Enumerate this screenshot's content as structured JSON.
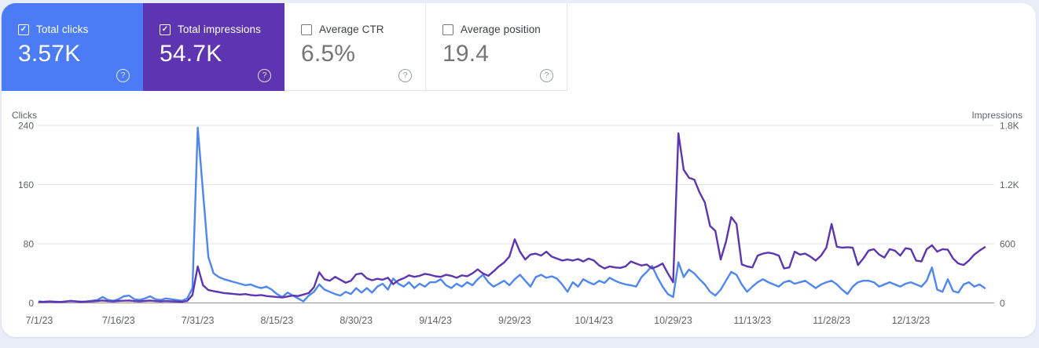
{
  "colors": {
    "page_bg": "#e9edf8",
    "card_bg": "#ffffff",
    "clicks_blue": "#4b7bf5",
    "clicks_line": "#4f86f0",
    "impressions_purple": "#5e35b1",
    "grid_line": "#e3e3e3",
    "zero_line": "#8f9499",
    "tick_text": "#5f6368",
    "plain_label": "#3c4043",
    "plain_value": "#757575"
  },
  "icons": {
    "check": "✓",
    "help": "?"
  },
  "metric_cards": [
    {
      "id": "total-clicks",
      "label": "Total clicks",
      "value": "3.57K",
      "checked": true,
      "bg": "#4b7bf5",
      "label_color": "#ffffff",
      "value_color": "#ffffff"
    },
    {
      "id": "total-impressions",
      "label": "Total impressions",
      "value": "54.7K",
      "checked": true,
      "bg": "#5e35b1",
      "label_color": "#ffffff",
      "value_color": "#ffffff"
    },
    {
      "id": "average-ctr",
      "label": "Average CTR",
      "value": "6.5%",
      "checked": false,
      "bg": "#ffffff",
      "label_color": "#3c4043",
      "value_color": "#757575"
    },
    {
      "id": "average-position",
      "label": "Average position",
      "value": "19.4",
      "checked": false,
      "bg": "#ffffff",
      "label_color": "#3c4043",
      "value_color": "#757575"
    }
  ],
  "chart_data": {
    "type": "line",
    "grid": true,
    "legend_position": "none",
    "x_tick_labels": [
      "7/1/23",
      "7/16/23",
      "7/31/23",
      "8/15/23",
      "8/30/23",
      "9/14/23",
      "9/29/23",
      "10/14/23",
      "10/29/23",
      "11/13/23",
      "11/28/23",
      "12/13/23"
    ],
    "x_tick_day_indices": [
      0,
      15,
      30,
      45,
      60,
      75,
      90,
      105,
      120,
      135,
      150,
      165
    ],
    "left_axis": {
      "title": "Clicks",
      "ticks": [
        "0",
        "80",
        "160",
        "240"
      ],
      "max": 240
    },
    "right_axis": {
      "title": "Impressions",
      "ticks": [
        "0",
        "600",
        "1.2K",
        "1.8K"
      ],
      "max": 1800
    },
    "series": [
      {
        "name": "Total clicks",
        "axis": "left",
        "color": "#4f86f0",
        "values": [
          2,
          1,
          2,
          1,
          1,
          2,
          3,
          2,
          1,
          2,
          3,
          4,
          8,
          4,
          3,
          5,
          9,
          10,
          5,
          4,
          6,
          9,
          5,
          4,
          6,
          5,
          4,
          3,
          6,
          20,
          237,
          150,
          62,
          40,
          35,
          32,
          30,
          28,
          26,
          24,
          25,
          22,
          20,
          22,
          18,
          12,
          8,
          14,
          10,
          6,
          2,
          10,
          15,
          25,
          18,
          15,
          12,
          10,
          15,
          12,
          20,
          14,
          20,
          14,
          22,
          26,
          18,
          33,
          26,
          22,
          28,
          20,
          26,
          22,
          28,
          28,
          32,
          24,
          20,
          26,
          22,
          28,
          24,
          32,
          38,
          28,
          22,
          26,
          30,
          24,
          32,
          38,
          30,
          22,
          35,
          38,
          34,
          36,
          33,
          25,
          15,
          28,
          22,
          32,
          28,
          25,
          30,
          27,
          34,
          30,
          27,
          25,
          24,
          22,
          35,
          42,
          50,
          35,
          22,
          12,
          8,
          55,
          35,
          45,
          40,
          32,
          25,
          15,
          10,
          18,
          30,
          42,
          38,
          25,
          15,
          22,
          28,
          32,
          28,
          25,
          22,
          28,
          30,
          26,
          28,
          30,
          25,
          20,
          25,
          28,
          30,
          25,
          18,
          12,
          22,
          28,
          30,
          30,
          28,
          22,
          25,
          28,
          25,
          22,
          26,
          28,
          25,
          22,
          30,
          48,
          18,
          15,
          32,
          16,
          14,
          25,
          28,
          22,
          25,
          20
        ]
      },
      {
        "name": "Total impressions",
        "axis": "right",
        "color": "#5e35b1",
        "values": [
          10,
          12,
          15,
          12,
          10,
          14,
          18,
          15,
          12,
          14,
          16,
          20,
          25,
          18,
          15,
          20,
          22,
          25,
          18,
          16,
          20,
          24,
          18,
          15,
          18,
          16,
          14,
          12,
          20,
          80,
          370,
          180,
          130,
          120,
          110,
          100,
          95,
          90,
          85,
          90,
          80,
          75,
          80,
          70,
          65,
          60,
          55,
          65,
          75,
          70,
          85,
          100,
          160,
          310,
          240,
          225,
          265,
          235,
          205,
          225,
          290,
          300,
          250,
          230,
          245,
          235,
          255,
          190,
          230,
          250,
          280,
          265,
          275,
          295,
          285,
          270,
          265,
          285,
          275,
          255,
          280,
          270,
          300,
          340,
          300,
          275,
          320,
          370,
          410,
          470,
          645,
          520,
          440,
          490,
          500,
          480,
          520,
          470,
          450,
          430,
          440,
          430,
          445,
          420,
          450,
          430,
          380,
          350,
          370,
          360,
          355,
          370,
          420,
          400,
          380,
          390,
          350,
          370,
          400,
          300,
          210,
          1720,
          1350,
          1270,
          1250,
          1120,
          1020,
          780,
          730,
          440,
          620,
          870,
          800,
          390,
          370,
          360,
          480,
          500,
          510,
          500,
          480,
          350,
          360,
          520,
          490,
          500,
          470,
          430,
          480,
          560,
          800,
          570,
          560,
          565,
          560,
          385,
          450,
          530,
          545,
          490,
          460,
          545,
          530,
          480,
          555,
          545,
          430,
          420,
          545,
          585,
          520,
          545,
          540,
          450,
          400,
          385,
          430,
          490,
          530,
          565
        ]
      }
    ]
  }
}
